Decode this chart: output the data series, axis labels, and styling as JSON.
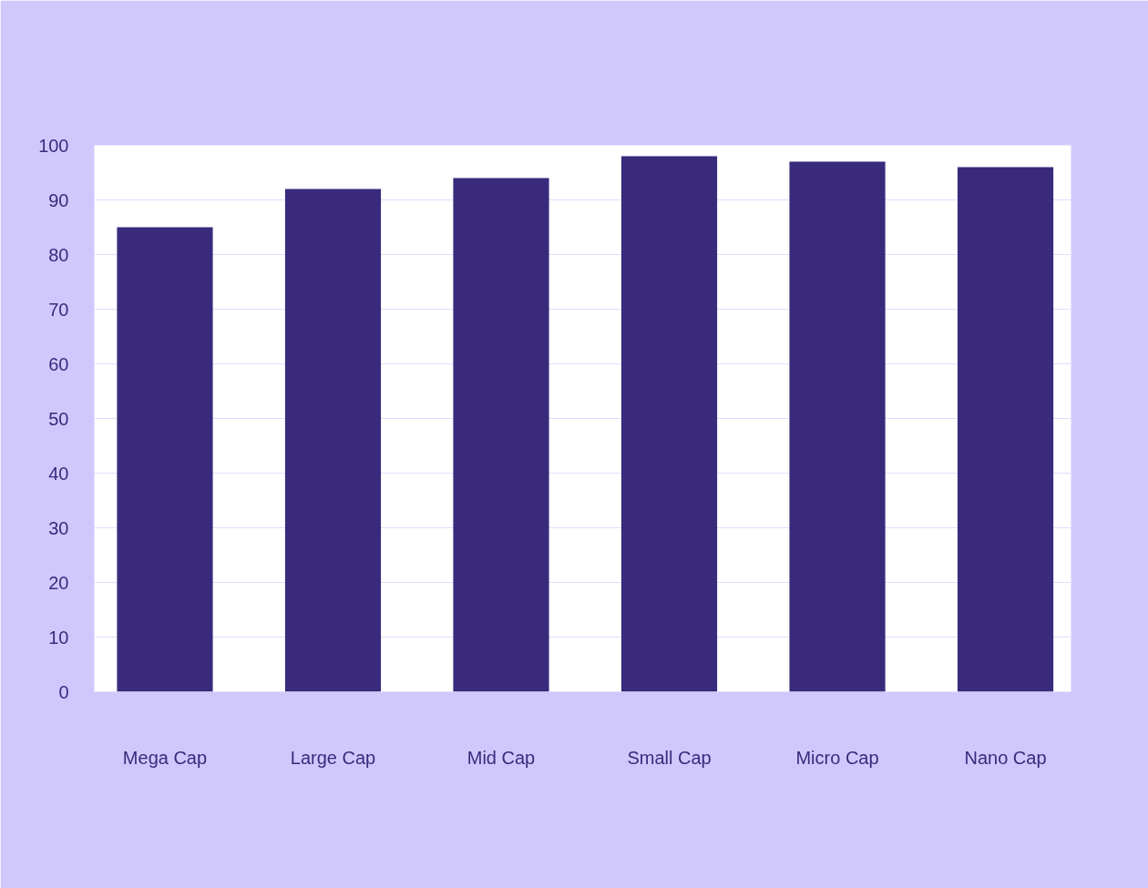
{
  "chart_data": {
    "type": "bar",
    "categories": [
      "Mega Cap",
      "Large Cap",
      "Mid Cap",
      "Small Cap",
      "Micro Cap",
      "Nano Cap"
    ],
    "values": [
      85,
      92,
      94,
      98,
      97,
      96
    ],
    "color": "#3a2a7c",
    "ylim": [
      0,
      100
    ],
    "yticks": [
      0,
      10,
      20,
      30,
      40,
      50,
      60,
      70,
      80,
      90,
      100
    ],
    "grid": "y"
  }
}
